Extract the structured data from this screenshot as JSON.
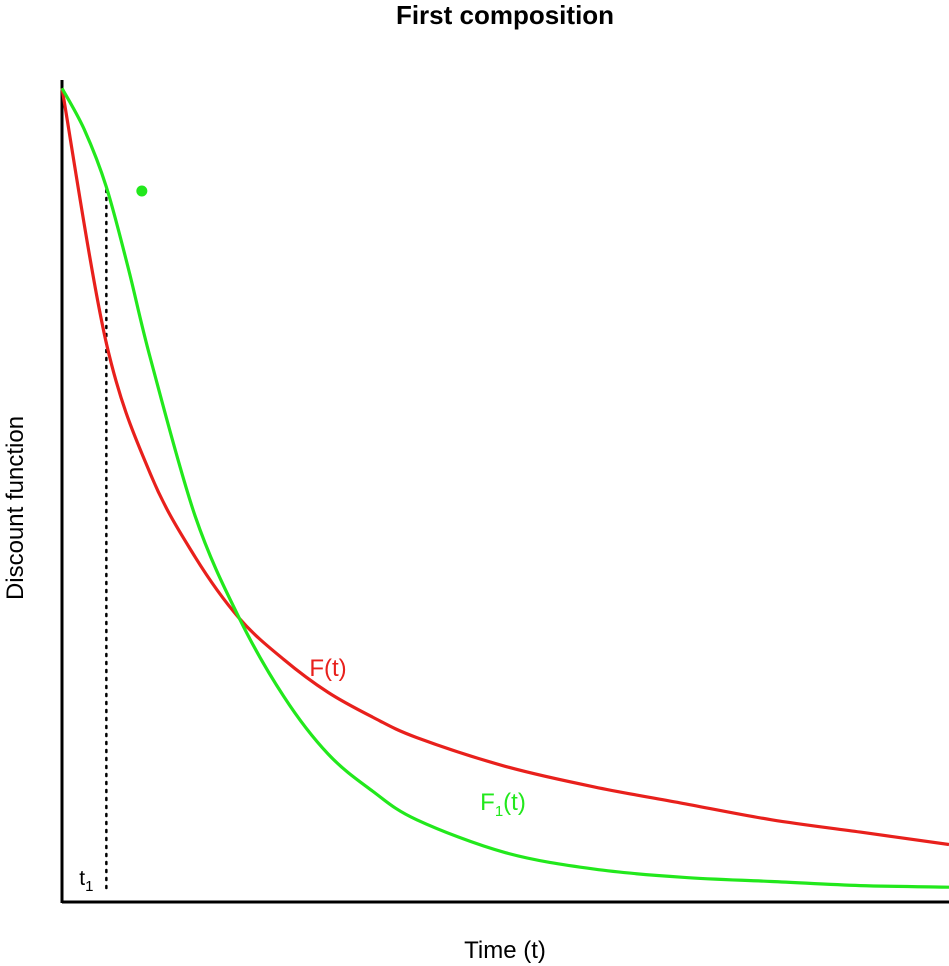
{
  "chart_data": {
    "type": "line",
    "title": "First composition",
    "xlabel": "Time (t)",
    "ylabel": "Discount function",
    "xlim": [
      0,
      10
    ],
    "ylim": [
      0,
      1
    ],
    "grid": false,
    "series": [
      {
        "name": "F(t)",
        "label_main": "F",
        "label_sub": "",
        "label_tail": "(t)",
        "color": "#e8201c",
        "x": [
          0,
          0.5,
          1,
          1.5,
          2,
          2.5,
          3,
          3.5,
          4,
          5,
          6,
          7,
          8,
          9,
          10
        ],
        "y": [
          0.99,
          0.68,
          0.52,
          0.42,
          0.345,
          0.295,
          0.255,
          0.225,
          0.2,
          0.165,
          0.14,
          0.12,
          0.1,
          0.085,
          0.07
        ]
      },
      {
        "name": "F1(t)",
        "label_main": "F",
        "label_sub": "1",
        "label_tail": "(t)",
        "color": "#22e81c",
        "x": [
          0,
          0.25,
          0.5,
          0.75,
          1,
          1.5,
          2,
          2.5,
          3,
          3.5,
          4,
          5,
          6,
          7,
          8,
          9,
          10
        ],
        "y": [
          0.99,
          0.94,
          0.87,
          0.77,
          0.66,
          0.47,
          0.345,
          0.25,
          0.18,
          0.135,
          0.1,
          0.06,
          0.04,
          0.03,
          0.025,
          0.02,
          0.018
        ]
      }
    ],
    "marker": {
      "x": 0.9,
      "y": 0.865,
      "color": "#22e81c"
    },
    "vline": {
      "x": 0.5,
      "label_main": "t",
      "label_sub": "1",
      "style": "dotted"
    }
  }
}
